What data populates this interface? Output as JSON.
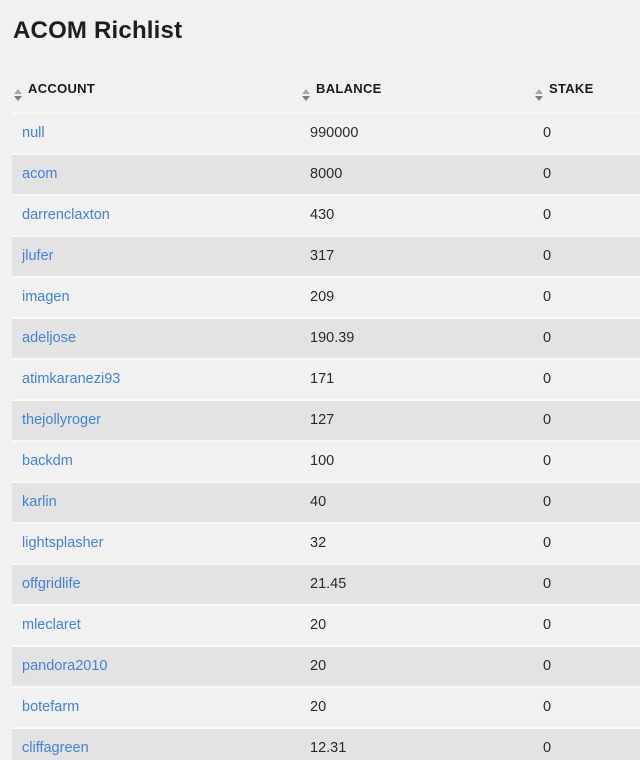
{
  "page": {
    "title": "ACOM Richlist"
  },
  "colors": {
    "background": "#f1f1f1",
    "row_stripe": "#e3e3e3",
    "row_plain": "#f1f1f1",
    "link": "#4183d7",
    "header_text": "#1b1b1b",
    "cell_text": "#2a2a2a"
  },
  "table": {
    "columns": [
      {
        "key": "account",
        "label": "ACCOUNT"
      },
      {
        "key": "balance",
        "label": "BALANCE"
      },
      {
        "key": "stake",
        "label": "STAKE"
      }
    ],
    "sort_icon": "up-down-triangles",
    "rows": [
      {
        "account": "null",
        "balance": "990000",
        "stake": "0"
      },
      {
        "account": "acom",
        "balance": "8000",
        "stake": "0"
      },
      {
        "account": "darrenclaxton",
        "balance": "430",
        "stake": "0"
      },
      {
        "account": "jlufer",
        "balance": "317",
        "stake": "0"
      },
      {
        "account": "imagen",
        "balance": "209",
        "stake": "0"
      },
      {
        "account": "adeljose",
        "balance": "190.39",
        "stake": "0"
      },
      {
        "account": "atimkaranezi93",
        "balance": "171",
        "stake": "0"
      },
      {
        "account": "thejollyroger",
        "balance": "127",
        "stake": "0"
      },
      {
        "account": "backdm",
        "balance": "100",
        "stake": "0"
      },
      {
        "account": "karlin",
        "balance": "40",
        "stake": "0"
      },
      {
        "account": "lightsplasher",
        "balance": "32",
        "stake": "0"
      },
      {
        "account": "offgridlife",
        "balance": "21.45",
        "stake": "0"
      },
      {
        "account": "mleclaret",
        "balance": "20",
        "stake": "0"
      },
      {
        "account": "pandora2010",
        "balance": "20",
        "stake": "0"
      },
      {
        "account": "botefarm",
        "balance": "20",
        "stake": "0"
      },
      {
        "account": "cliffagreen",
        "balance": "12.31",
        "stake": "0"
      }
    ]
  }
}
